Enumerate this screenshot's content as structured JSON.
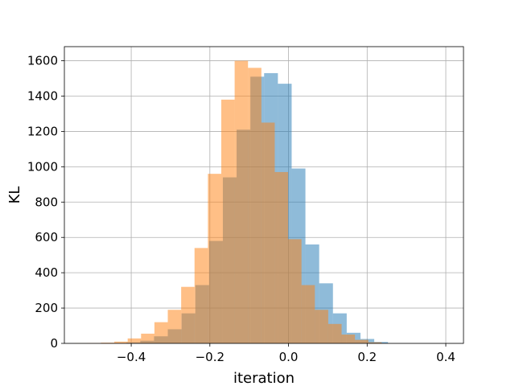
{
  "chart_data": {
    "type": "bar",
    "title": "",
    "xlabel": "iteration",
    "ylabel": "KL",
    "xlim": [
      -0.57,
      0.445
    ],
    "ylim": [
      0,
      1680
    ],
    "xticks": [
      -0.4,
      -0.2,
      0.0,
      0.2,
      0.4
    ],
    "xtick_labels": [
      "−0.4",
      "−0.2",
      "0.0",
      "0.2",
      "0.4"
    ],
    "yticks": [
      0,
      200,
      400,
      600,
      800,
      1000,
      1200,
      1400,
      1600
    ],
    "ytick_labels": [
      "0",
      "200",
      "400",
      "600",
      "800",
      "1000",
      "1200",
      "1400",
      "1600"
    ],
    "grid": true,
    "legend": null,
    "series": [
      {
        "color": "#1f77b4",
        "opacity": 0.5,
        "bin_edges": [
          -0.447,
          -0.412,
          -0.377,
          -0.342,
          -0.307,
          -0.272,
          -0.237,
          -0.202,
          -0.167,
          -0.132,
          -0.097,
          -0.062,
          -0.027,
          0.008,
          0.043,
          0.078,
          0.113,
          0.148,
          0.183,
          0.218,
          0.253
        ],
        "counts": [
          2,
          5,
          15,
          40,
          80,
          170,
          330,
          580,
          940,
          1210,
          1510,
          1530,
          1470,
          990,
          560,
          340,
          170,
          60,
          25,
          8
        ]
      },
      {
        "color": "#ff7f0e",
        "opacity": 0.5,
        "bin_edges": [
          -0.545,
          -0.511,
          -0.477,
          -0.443,
          -0.409,
          -0.375,
          -0.341,
          -0.307,
          -0.273,
          -0.239,
          -0.205,
          -0.171,
          -0.137,
          -0.103,
          -0.069,
          -0.035,
          -0.001,
          0.033,
          0.067,
          0.101,
          0.135,
          0.169,
          0.203,
          0.237
        ],
        "counts": [
          1,
          2,
          4,
          10,
          28,
          55,
          120,
          190,
          320,
          540,
          960,
          1380,
          1600,
          1560,
          1250,
          970,
          590,
          330,
          190,
          110,
          50,
          20,
          6
        ]
      }
    ]
  }
}
